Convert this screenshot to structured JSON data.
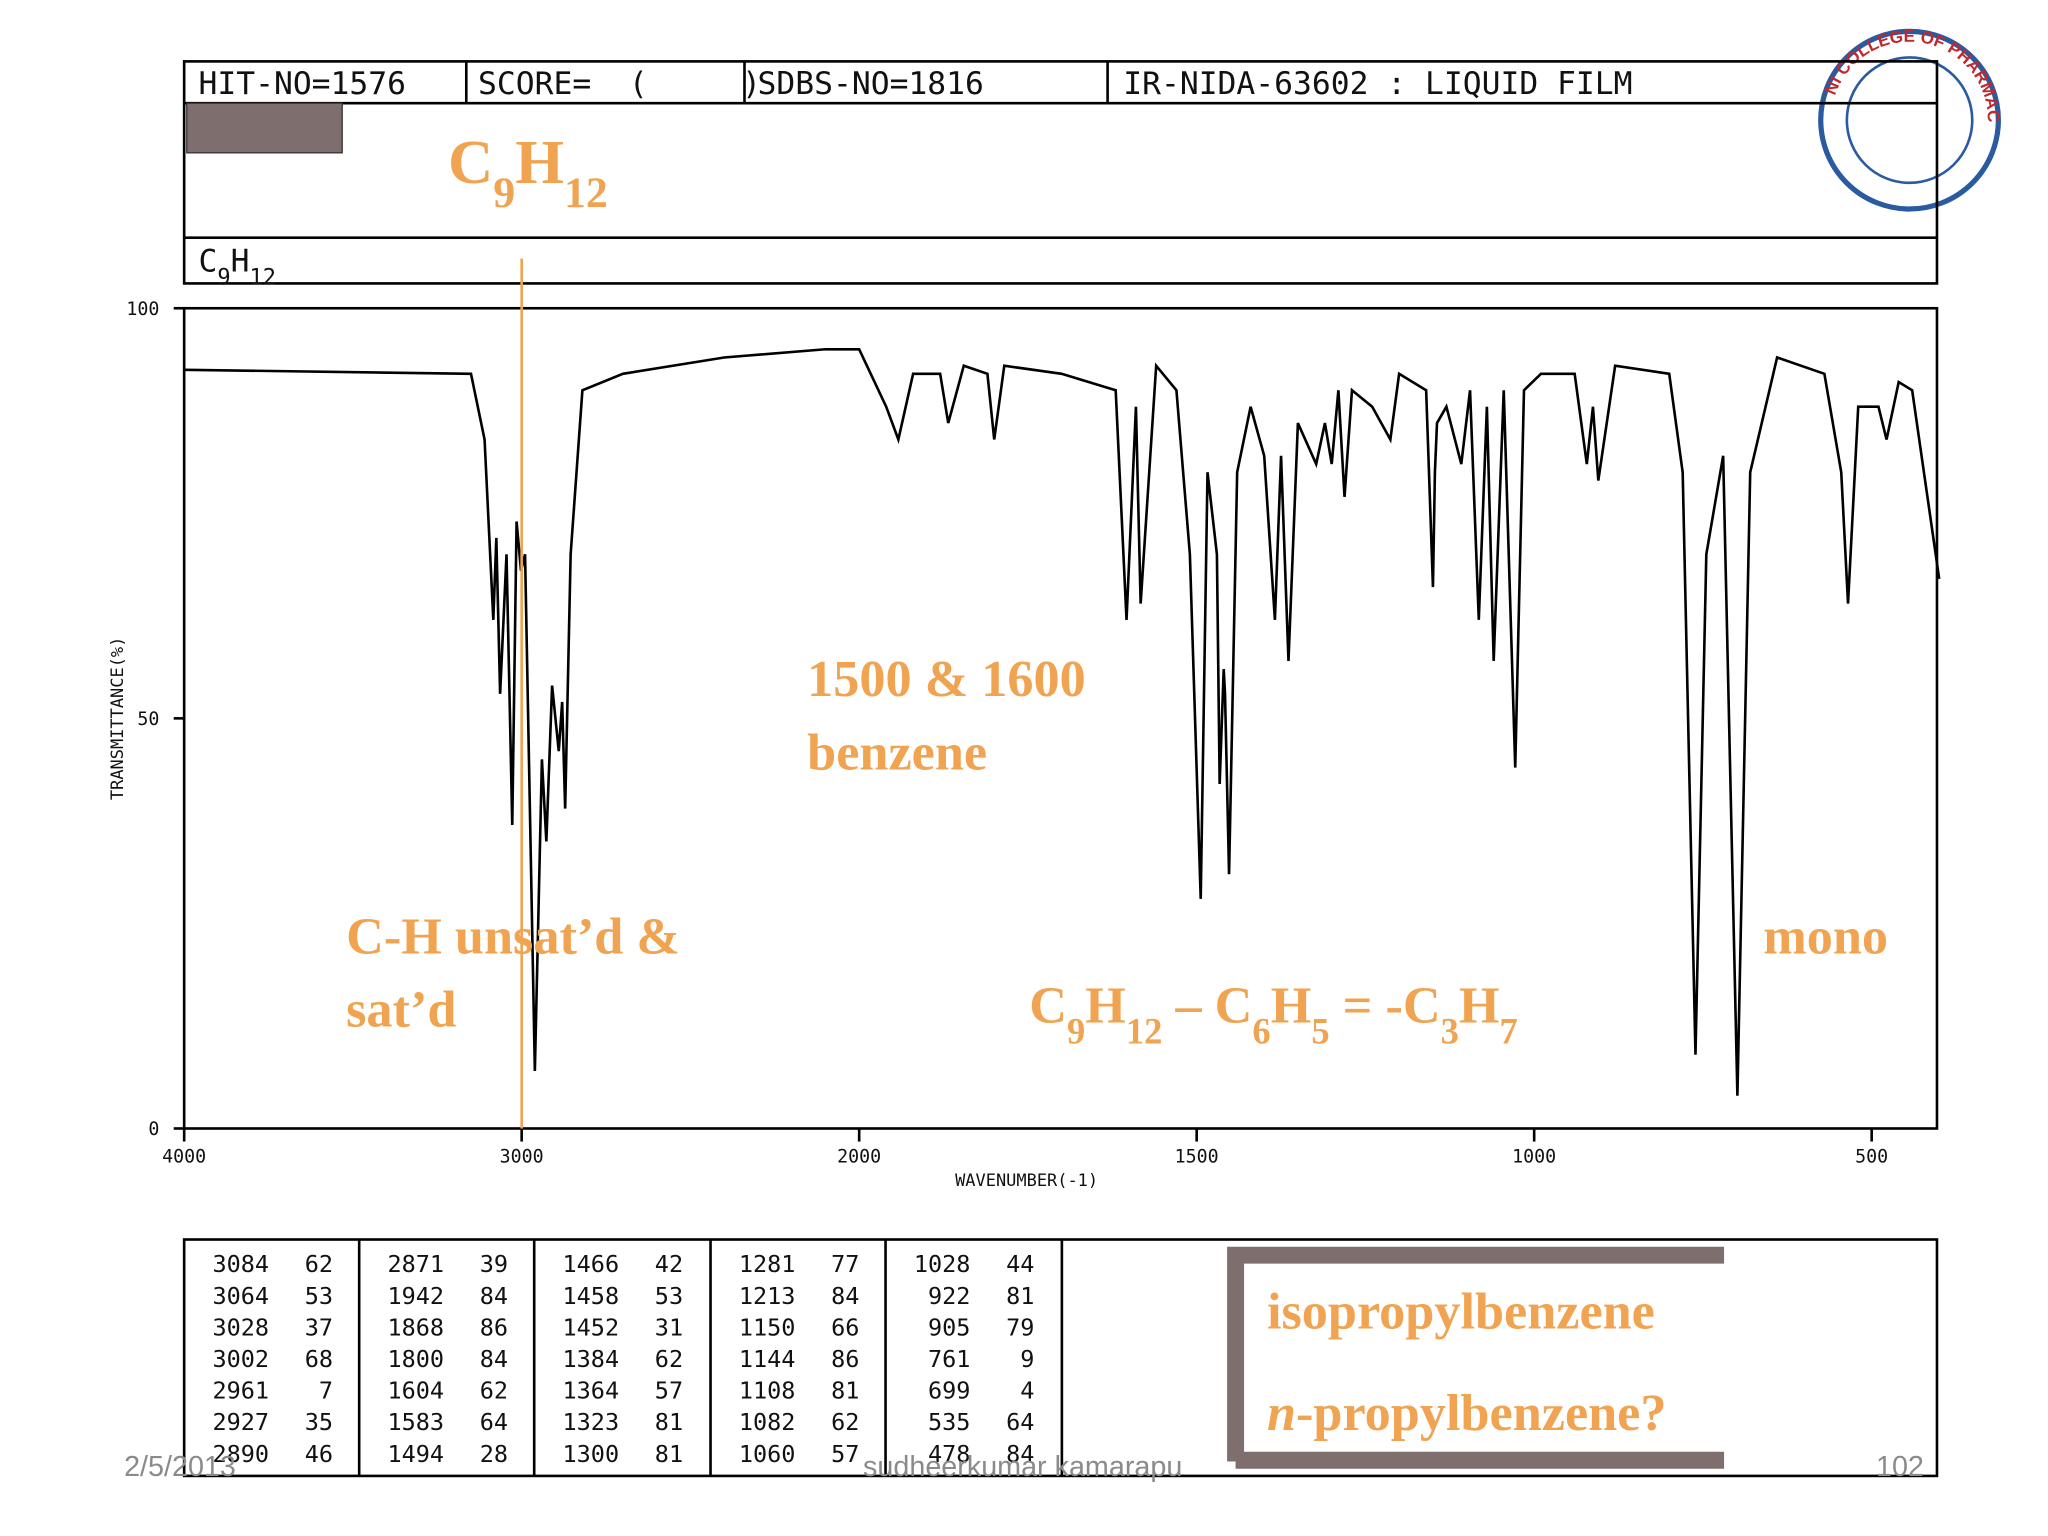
{
  "header": {
    "cells": [
      "HIT-NO=1576",
      "SCORE=  (     )",
      "SDBS-NO=1816",
      "IR-NIDA-63602 : LIQUID FILM"
    ],
    "formula_mono": [
      "C",
      {
        "sub": "9"
      },
      "H",
      {
        "sub": "12"
      }
    ]
  },
  "formula_label": [
    "C",
    {
      "sub": "9"
    },
    "H",
    {
      "sub": "12"
    }
  ],
  "chart_data": {
    "type": "line",
    "xlabel": "WAVENUMBER(-1)",
    "ylabel": "TRANSMITTANCE(%)",
    "xlim": [
      4000,
      400
    ],
    "ylim": [
      0,
      100
    ],
    "xticks": [
      4000,
      3000,
      2000,
      1500,
      1000,
      500
    ],
    "yticks": [
      0,
      50,
      100
    ],
    "reference_line_x": 3000,
    "color": "#000000",
    "x": [
      4000,
      3150,
      3110,
      3084,
      3075,
      3064,
      3045,
      3028,
      3015,
      3002,
      2990,
      2961,
      2940,
      2927,
      2910,
      2890,
      2880,
      2871,
      2855,
      2820,
      2700,
      2400,
      2100,
      2000,
      1960,
      1942,
      1920,
      1880,
      1868,
      1845,
      1810,
      1800,
      1785,
      1700,
      1660,
      1620,
      1604,
      1590,
      1583,
      1560,
      1530,
      1510,
      1494,
      1484,
      1470,
      1466,
      1460,
      1458,
      1452,
      1440,
      1420,
      1400,
      1384,
      1375,
      1364,
      1350,
      1323,
      1310,
      1300,
      1290,
      1281,
      1270,
      1240,
      1213,
      1200,
      1160,
      1150,
      1147,
      1144,
      1130,
      1108,
      1095,
      1082,
      1070,
      1060,
      1045,
      1028,
      1015,
      990,
      940,
      922,
      913,
      905,
      880,
      800,
      780,
      761,
      745,
      720,
      699,
      680,
      640,
      570,
      545,
      535,
      520,
      490,
      478,
      460,
      440,
      400
    ],
    "values": [
      92.5,
      92,
      84,
      62,
      72,
      53,
      70,
      37,
      74,
      68,
      70,
      7,
      45,
      35,
      54,
      46,
      52,
      39,
      70,
      90,
      92,
      94,
      95,
      95,
      88,
      84,
      92,
      92,
      86,
      93,
      92,
      84,
      93,
      92,
      91,
      90,
      62,
      88,
      64,
      93,
      90,
      70,
      28,
      80,
      70,
      42,
      56,
      53,
      31,
      80,
      88,
      82,
      62,
      82,
      57,
      86,
      81,
      86,
      81,
      90,
      77,
      90,
      88,
      84,
      92,
      90,
      66,
      80,
      86,
      88,
      81,
      90,
      62,
      88,
      57,
      90,
      44,
      90,
      92,
      92,
      81,
      88,
      79,
      93,
      92,
      80,
      9,
      70,
      82,
      4,
      80,
      94,
      92,
      80,
      64,
      88,
      88,
      84,
      91,
      90,
      67
    ]
  },
  "annotations": [
    [
      "1500 & 1600",
      "benzene"
    ],
    [
      "C-H unsat’d &",
      "sat’d"
    ],
    [
      "mono"
    ]
  ],
  "difference": [
    "C",
    {
      "sub": "9"
    },
    "H",
    {
      "sub": "12"
    },
    " – C",
    {
      "sub": "6"
    },
    "H",
    {
      "sub": "5"
    },
    " = -C",
    {
      "sub": "3"
    },
    "H",
    {
      "sub": "7"
    }
  ],
  "peak_table": [
    [
      [
        3084,
        62
      ],
      [
        3064,
        53
      ],
      [
        3028,
        37
      ],
      [
        3002,
        68
      ],
      [
        2961,
        7
      ],
      [
        2927,
        35
      ],
      [
        2890,
        46
      ]
    ],
    [
      [
        2871,
        39
      ],
      [
        1942,
        84
      ],
      [
        1868,
        86
      ],
      [
        1800,
        84
      ],
      [
        1604,
        62
      ],
      [
        1583,
        64
      ],
      [
        1494,
        28
      ]
    ],
    [
      [
        1466,
        42
      ],
      [
        1458,
        53
      ],
      [
        1452,
        31
      ],
      [
        1384,
        62
      ],
      [
        1364,
        57
      ],
      [
        1323,
        81
      ],
      [
        1300,
        81
      ]
    ],
    [
      [
        1281,
        77
      ],
      [
        1213,
        84
      ],
      [
        1150,
        66
      ],
      [
        1144,
        86
      ],
      [
        1108,
        81
      ],
      [
        1082,
        62
      ],
      [
        1060,
        57
      ]
    ],
    [
      [
        1028,
        44
      ],
      [
        922,
        81
      ],
      [
        905,
        79
      ],
      [
        761,
        9
      ],
      [
        699,
        4
      ],
      [
        535,
        64
      ],
      [
        478,
        84
      ]
    ]
  ],
  "answers": [
    [
      "isopropylbenzene"
    ],
    [
      {
        "italic": "n"
      },
      "-propylbenzene?"
    ]
  ],
  "logo_text": "NI COLLEGE OF PHARMACY",
  "footer": {
    "date": "2/5/2013",
    "author": "sudheerkumar kamarapu",
    "page": "102"
  }
}
